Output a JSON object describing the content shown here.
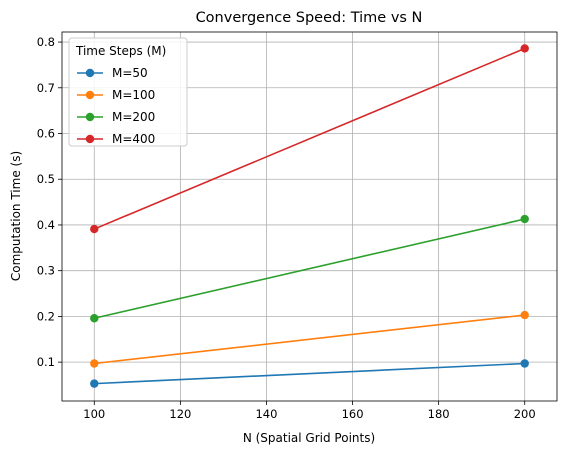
{
  "chart_data": {
    "type": "line",
    "title": "Convergence Speed: Time vs N",
    "xlabel": "N (Spatial Grid Points)",
    "ylabel": "Computation Time (s)",
    "xlim": [
      92.5,
      207.5
    ],
    "ylim": [
      0.015,
      0.822
    ],
    "xticks": [
      100,
      120,
      140,
      160,
      180,
      200
    ],
    "yticks": [
      0.1,
      0.2,
      0.3,
      0.4,
      0.5,
      0.6,
      0.7,
      0.8
    ],
    "grid": true,
    "legend": {
      "title": "Time Steps (M)",
      "placement": "top-left"
    },
    "x": [
      100,
      200
    ],
    "series": [
      {
        "name": "M=50",
        "values": [
          0.053,
          0.097
        ],
        "color": "#1f77b4"
      },
      {
        "name": "M=100",
        "values": [
          0.097,
          0.203
        ],
        "color": "#ff7f0e"
      },
      {
        "name": "M=200",
        "values": [
          0.196,
          0.413
        ],
        "color": "#2ca02c"
      },
      {
        "name": "M=400",
        "values": [
          0.391,
          0.786
        ],
        "color": "#d62728"
      }
    ]
  }
}
